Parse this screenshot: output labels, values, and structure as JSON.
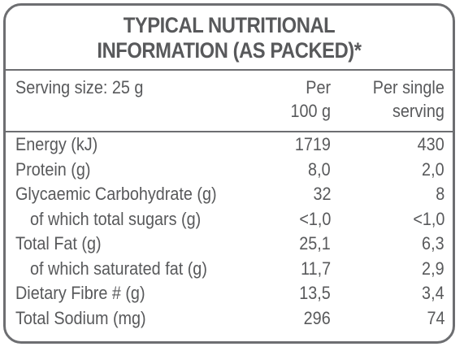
{
  "title": {
    "line1": "TYPICAL NUTRITIONAL",
    "line2": "INFORMATION (AS PACKED)*"
  },
  "header": {
    "serving_size": "Serving size: 25 g",
    "per100_line1": "Per",
    "per100_line2": "100 g",
    "serving_line1": "Per single",
    "serving_line2": "serving"
  },
  "rows": [
    {
      "label": "Energy (kJ)",
      "per100": "1719",
      "serving": "430",
      "indent": false
    },
    {
      "label": "Protein (g)",
      "per100": "8,0",
      "serving": "2,0",
      "indent": false
    },
    {
      "label": "Glycaemic Carbohydrate (g)",
      "per100": "32",
      "serving": "8",
      "indent": false
    },
    {
      "label": "of which total sugars (g)",
      "per100": "<1,0",
      "serving": "<1,0",
      "indent": true
    },
    {
      "label": "Total Fat (g)",
      "per100": "25,1",
      "serving": "6,3",
      "indent": false
    },
    {
      "label": "of which saturated fat (g)",
      "per100": "11,7",
      "serving": "2,9",
      "indent": true
    },
    {
      "label": "Dietary Fibre # (g)",
      "per100": "13,5",
      "serving": "3,4",
      "indent": false
    },
    {
      "label": "Total Sodium (mg)",
      "per100": "296",
      "serving": "74",
      "indent": false
    }
  ]
}
